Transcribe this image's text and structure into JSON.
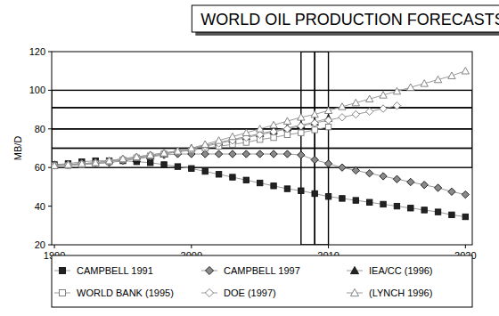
{
  "chart_data": {
    "type": "line",
    "title": "WORLD OIL PRODUCTION FORECASTS",
    "y_label": "MB/D",
    "x": [
      1990,
      1991,
      1992,
      1993,
      1994,
      1995,
      1996,
      1997,
      1998,
      1999,
      2000,
      2001,
      2002,
      2003,
      2004,
      2005,
      2006,
      2007,
      2008,
      2009,
      2010,
      2011,
      2012,
      2013,
      2014,
      2015,
      2016,
      2017,
      2018,
      2019,
      2020
    ],
    "xlim": [
      1989.8,
      2020.5
    ],
    "xticks": [
      1990,
      2000,
      2010,
      2020
    ],
    "ylim": [
      20,
      120
    ],
    "yticks": [
      20,
      40,
      60,
      80,
      100,
      120
    ],
    "grid": false,
    "legend": "bottom",
    "y_bands": [
      60,
      70,
      80,
      91,
      100
    ],
    "x_bands": [
      2008,
      2009,
      2010
    ],
    "series": [
      {
        "name": "CAMPBELL 1991",
        "color": "#222222",
        "marker": "square",
        "values": [
          61.5,
          62,
          63,
          63.5,
          63.5,
          63.5,
          63,
          62.5,
          61.5,
          60.5,
          59.5,
          58,
          56.5,
          55,
          53.5,
          52,
          50.5,
          49,
          48,
          46.5,
          45,
          44,
          43,
          42,
          41,
          40,
          39,
          38,
          37,
          35.5,
          34.5
        ]
      },
      {
        "name": "CAMPBELL 1997",
        "color": "#8a8a8a",
        "marker": "diamond",
        "values": [
          61.5,
          61.5,
          62,
          62,
          62.5,
          63.5,
          64.5,
          65.5,
          66.5,
          67,
          67,
          67,
          67,
          67,
          67,
          67,
          67,
          67,
          66.5,
          64,
          62,
          60,
          58.5,
          57,
          55.5,
          54,
          52.5,
          51,
          49.5,
          47.5,
          46
        ]
      },
      {
        "name": "IEA/CC (1996)",
        "color": "#222222",
        "marker": "triangle",
        "values": [
          null,
          null,
          null,
          null,
          null,
          null,
          64.5,
          66,
          67,
          68.5,
          70,
          71.5,
          73,
          74.5,
          76,
          77.5,
          79,
          80.5,
          82,
          83.5,
          85.5,
          null,
          null,
          null,
          null,
          null,
          null,
          null,
          null,
          null,
          null
        ]
      },
      {
        "name": "WORLD BANK (1995)",
        "color": "#777777",
        "marker": "open-square",
        "values": [
          61,
          61,
          61.5,
          62,
          63,
          64,
          65,
          66,
          67,
          68,
          69,
          70,
          71,
          72,
          73,
          74.5,
          75.5,
          77,
          78,
          79.5,
          81,
          null,
          null,
          null,
          null,
          null,
          null,
          null,
          null,
          null,
          null
        ]
      },
      {
        "name": "DOE (1997)",
        "color": "#777777",
        "marker": "open-diamond",
        "values": [
          61,
          61.5,
          62,
          62.5,
          63.5,
          64.5,
          65.5,
          66.5,
          67.5,
          68.5,
          69.5,
          71,
          72.5,
          74,
          75.5,
          77,
          78.5,
          80,
          81.5,
          83,
          84.5,
          86,
          87.5,
          89,
          90.5,
          92,
          null,
          null,
          null,
          null,
          null
        ]
      },
      {
        "name": "(LYNCH 1996)",
        "color": "#777777",
        "marker": "open-triangle",
        "values": [
          61,
          61.5,
          62,
          62.5,
          63.5,
          64.5,
          65.5,
          66.5,
          67.5,
          68.5,
          70,
          72,
          74,
          76,
          78,
          80,
          82,
          84,
          86,
          87.5,
          89.5,
          91.5,
          93.5,
          95.5,
          97.5,
          99.5,
          101.5,
          103.5,
          105.5,
          107.5,
          110
        ]
      }
    ]
  }
}
